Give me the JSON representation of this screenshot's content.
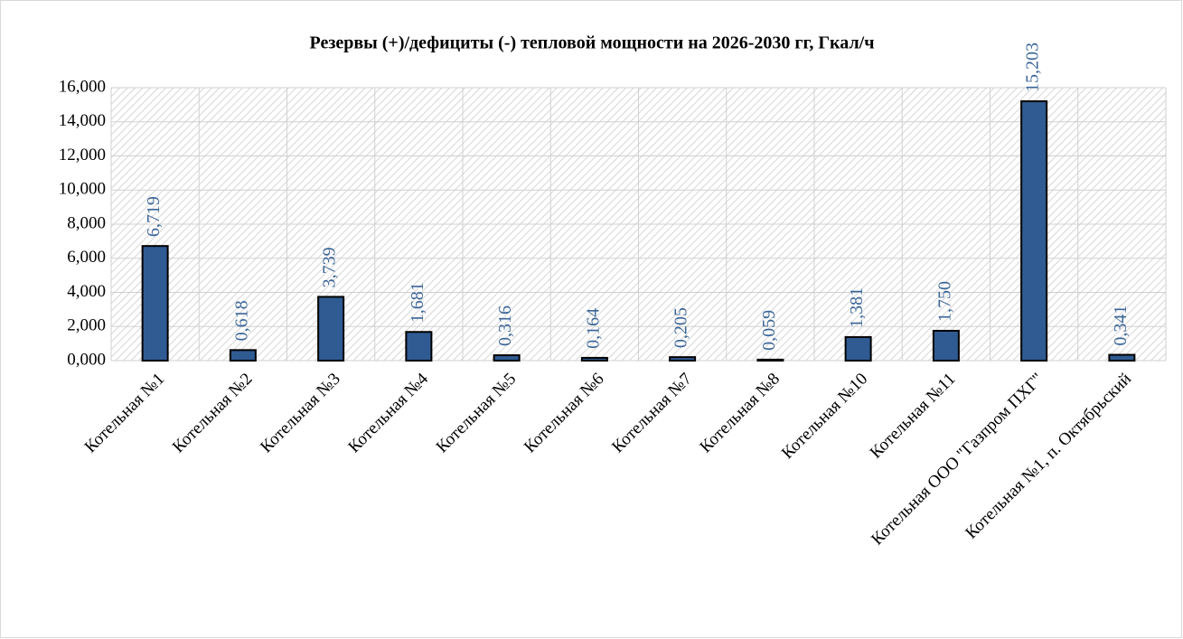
{
  "chart_data": {
    "type": "bar",
    "title": "Резервы (+)/дефициты (-) тепловой мощности на 2026-2030 гг, Гкал/ч",
    "categories": [
      "Котельная №1",
      "Котельная №2",
      "Котельная №3",
      "Котельная №4",
      "Котельная №5",
      "Котельная №6",
      "Котельная №7",
      "Котельная №8",
      "Котельная №10",
      "Котельная №11",
      "Котельная ООО \"Газпром ПХГ\"",
      "Котельная №1, п. Октябрьский"
    ],
    "values": [
      6.719,
      0.618,
      3.739,
      1.681,
      0.316,
      0.164,
      0.205,
      0.059,
      1.381,
      1.75,
      15.203,
      0.341
    ],
    "value_labels": [
      "6,719",
      "0,618",
      "3,739",
      "1,681",
      "0,316",
      "0,164",
      "0,205",
      "0,059",
      "1,381",
      "1,750",
      "15,203",
      "0,341"
    ],
    "color": "#2f5b92",
    "ylim": [
      0,
      16
    ],
    "yticks": [
      {
        "value": 0,
        "label": "0,000"
      },
      {
        "value": 2,
        "label": "2,000"
      },
      {
        "value": 4,
        "label": "4,000"
      },
      {
        "value": 6,
        "label": "6,000"
      },
      {
        "value": 8,
        "label": "8,000"
      },
      {
        "value": 10,
        "label": "10,000"
      },
      {
        "value": 12,
        "label": "12,000"
      },
      {
        "value": 14,
        "label": "14,000"
      },
      {
        "value": 16,
        "label": "16,000"
      }
    ],
    "grid": true
  }
}
